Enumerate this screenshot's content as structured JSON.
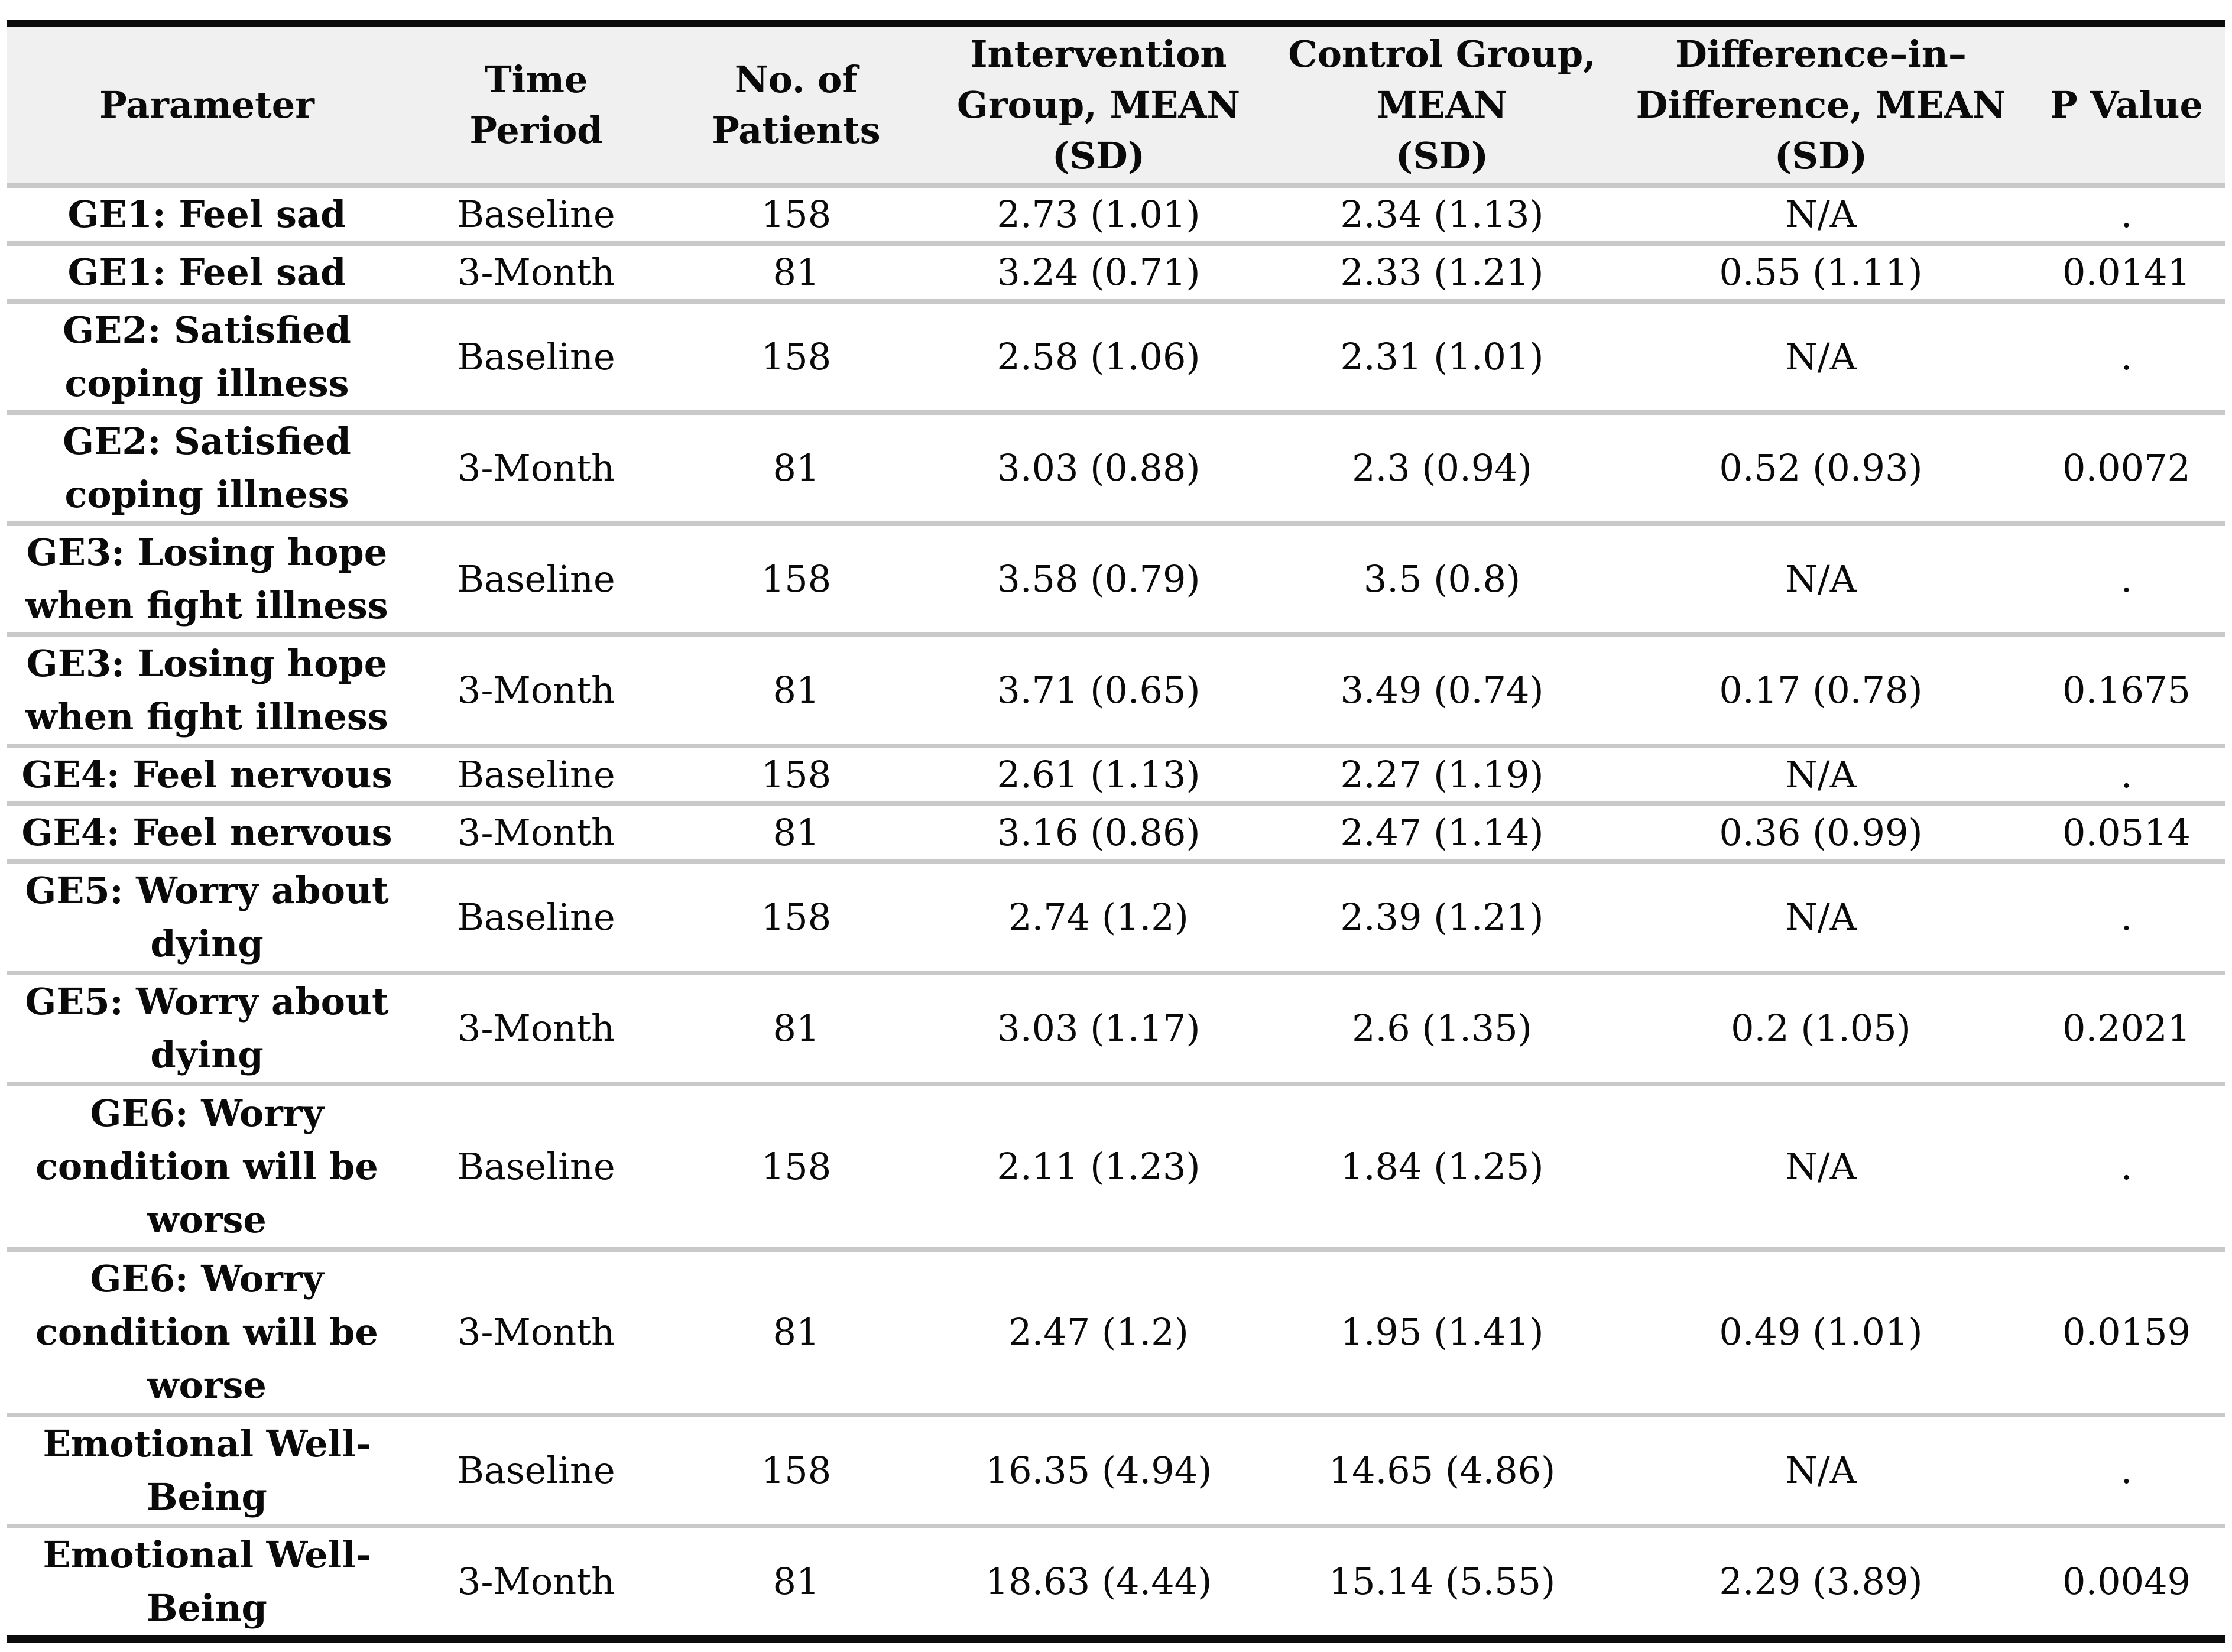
{
  "table": {
    "title": "Intervention vs control group outcomes table",
    "columns": [
      "Parameter",
      "Time\nPeriod",
      "No. of\nPatients",
      "Intervention\nGroup, MEAN\n(SD)",
      "Control Group,\nMEAN\n(SD)",
      "Difference–in–\nDifference, MEAN\n(SD)",
      "P Value"
    ],
    "rows": [
      [
        "GE1: Feel sad",
        "Baseline",
        "158",
        "2.73 (1.01)",
        "2.34 (1.13)",
        "N/A",
        "."
      ],
      [
        "GE1: Feel sad",
        "3-Month",
        "81",
        "3.24 (0.71)",
        "2.33 (1.21)",
        "0.55 (1.11)",
        "0.0141"
      ],
      [
        "GE2: Satisfied\ncoping illness",
        "Baseline",
        "158",
        "2.58 (1.06)",
        "2.31 (1.01)",
        "N/A",
        "."
      ],
      [
        "GE2: Satisfied\ncoping illness",
        "3-Month",
        "81",
        "3.03 (0.88)",
        "2.3 (0.94)",
        "0.52 (0.93)",
        "0.0072"
      ],
      [
        "GE3: Losing hope\nwhen fight illness",
        "Baseline",
        "158",
        "3.58 (0.79)",
        "3.5 (0.8)",
        "N/A",
        "."
      ],
      [
        "GE3: Losing hope\nwhen fight illness",
        "3-Month",
        "81",
        "3.71 (0.65)",
        "3.49 (0.74)",
        "0.17 (0.78)",
        "0.1675"
      ],
      [
        "GE4: Feel nervous",
        "Baseline",
        "158",
        "2.61 (1.13)",
        "2.27 (1.19)",
        "N/A",
        "."
      ],
      [
        "GE4: Feel nervous",
        "3-Month",
        "81",
        "3.16 (0.86)",
        "2.47 (1.14)",
        "0.36 (0.99)",
        "0.0514"
      ],
      [
        "GE5: Worry about\ndying",
        "Baseline",
        "158",
        "2.74 (1.2)",
        "2.39 (1.21)",
        "N/A",
        "."
      ],
      [
        "GE5: Worry about\ndying",
        "3-Month",
        "81",
        "3.03 (1.17)",
        "2.6 (1.35)",
        "0.2 (1.05)",
        "0.2021"
      ],
      [
        "GE6: Worry\ncondition will be\nworse",
        "Baseline",
        "158",
        "2.11 (1.23)",
        "1.84 (1.25)",
        "N/A",
        "."
      ],
      [
        "GE6: Worry\ncondition will be\nworse",
        "3-Month",
        "81",
        "2.47 (1.2)",
        "1.95 (1.41)",
        "0.49 (1.01)",
        "0.0159"
      ],
      [
        "Emotional Well-\nBeing",
        "Baseline",
        "158",
        "16.35 (4.94)",
        "14.65 (4.86)",
        "N/A",
        "."
      ],
      [
        "Emotional Well-\nBeing",
        "3-Month",
        "81",
        "18.63 (4.44)",
        "15.14 (5.55)",
        "2.29 (3.89)",
        "0.0049"
      ]
    ]
  },
  "colors": {
    "header_background": "#f1f0f0",
    "row_separator": "#c9c9c9",
    "thick_rule": "#0c0c0c",
    "text": "#0a0a0a",
    "page_background": "#ffffff"
  }
}
